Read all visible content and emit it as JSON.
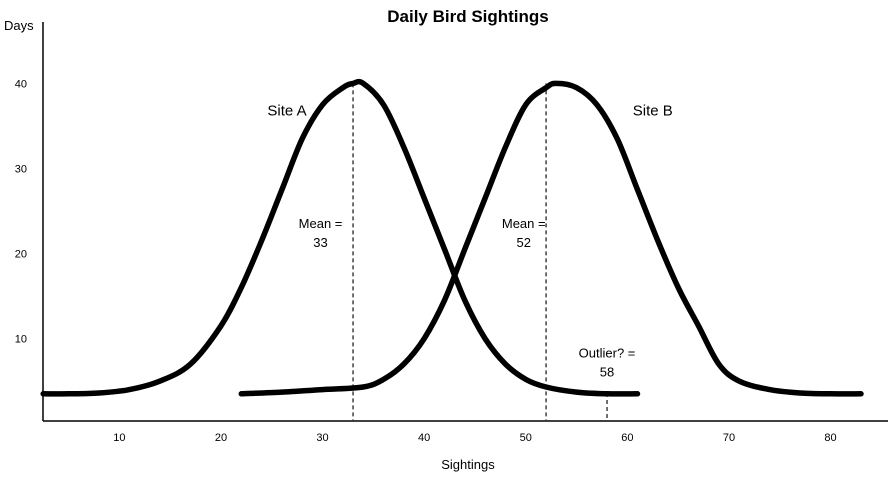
{
  "chart_data": {
    "type": "line",
    "title": "Daily Bird Sightings",
    "xlabel": "Sightings",
    "ylabel": "Days",
    "xlim": [
      0,
      84
    ],
    "ylim": [
      0,
      44
    ],
    "xticks": [
      10,
      20,
      30,
      40,
      50,
      60,
      70,
      80
    ],
    "yticks": [
      10,
      20,
      30,
      40
    ],
    "grid": false,
    "colors": {
      "curve": "#000000",
      "axis": "#000000",
      "dashed": "#333333"
    },
    "series": [
      {
        "name": "Site A",
        "x": [
          2.5,
          5,
          8,
          11,
          14,
          17,
          20,
          22,
          24,
          26,
          28,
          30,
          32,
          33,
          34,
          36,
          38,
          40,
          42,
          44,
          46,
          48,
          50,
          52,
          55,
          58,
          61
        ],
        "values": [
          3.5,
          3.5,
          3.6,
          4.0,
          5.0,
          7.0,
          11.5,
          16.0,
          21.5,
          27.5,
          33.5,
          37.5,
          39.5,
          40.0,
          40.0,
          37.5,
          32.5,
          26.5,
          20.5,
          14.5,
          10.0,
          7.0,
          5.2,
          4.3,
          3.7,
          3.5,
          3.5
        ]
      },
      {
        "name": "Site B",
        "x": [
          22,
          26,
          30,
          34,
          36,
          38,
          40,
          42,
          44,
          46,
          48,
          50,
          52,
          53,
          55,
          57,
          59,
          61,
          63,
          65,
          67,
          69,
          71,
          74,
          77,
          80,
          83
        ],
        "values": [
          3.5,
          3.7,
          4.0,
          4.3,
          5.2,
          7.0,
          10.0,
          14.5,
          20.5,
          26.5,
          32.5,
          37.5,
          39.5,
          40.0,
          39.5,
          37.5,
          33.5,
          27.5,
          21.5,
          16.0,
          11.5,
          7.0,
          5.0,
          4.0,
          3.6,
          3.5,
          3.5
        ]
      }
    ],
    "reference_lines": [
      {
        "x": 33,
        "label_line1": "Mean =",
        "label_line2": "33"
      },
      {
        "x": 52,
        "label_line1": "Mean =",
        "label_line2": "52"
      },
      {
        "x": 58,
        "label_line1": "Outlier? =",
        "label_line2": "58"
      }
    ]
  }
}
